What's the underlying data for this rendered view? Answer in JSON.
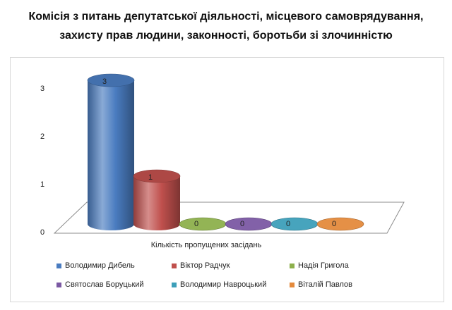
{
  "title": {
    "line1": "Комісія з питань депутатської діяльності, місцевого самоврядування,",
    "line2": "захисту прав людини, законності, боротьби зі злочинністю"
  },
  "chart_data": {
    "type": "bar",
    "title": "Комісія з питань депутатської діяльності, місцевого самоврядування, захисту прав людини, законності, боротьби зі злочинністю",
    "xlabel": "Кількість пропущених засідань",
    "ylabel": "",
    "categories": [
      "Кількість пропущених засідань"
    ],
    "ylim": [
      0,
      3
    ],
    "yticks": [
      "0",
      "1",
      "2",
      "3"
    ],
    "grid": false,
    "legend_position": "bottom",
    "series": [
      {
        "name": "Володимир Дибель",
        "values": [
          3
        ],
        "color": "#4a7cc0"
      },
      {
        "name": "Віктор Радчук",
        "values": [
          1
        ],
        "color": "#c0504d"
      },
      {
        "name": "Надія Григола",
        "values": [
          0
        ],
        "color": "#8db04c"
      },
      {
        "name": "Святослав Боруцький",
        "values": [
          0
        ],
        "color": "#7b59a3"
      },
      {
        "name": "Володимир Навроцький",
        "values": [
          0
        ],
        "color": "#3d9fb9"
      },
      {
        "name": "Віталій Павлов",
        "values": [
          0
        ],
        "color": "#e48a3c"
      }
    ]
  }
}
